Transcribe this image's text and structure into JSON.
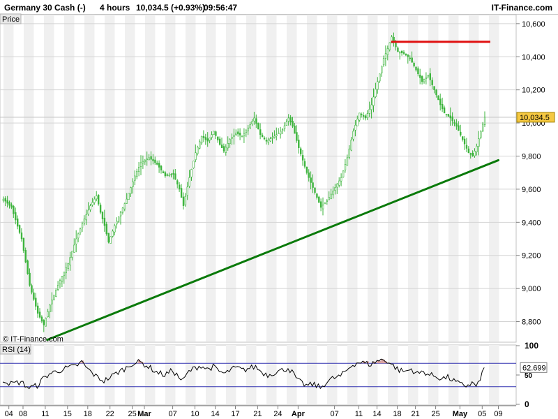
{
  "header": {
    "instrument": "Germany 30 Cash (-)",
    "timeframe": "4 hours",
    "quote": "10,034.5 (+0.93%)",
    "time": "09:56:47",
    "brand": "IT-Finance.com"
  },
  "price_panel": {
    "label": "Price",
    "watermark": "© IT-Finance.com",
    "last_price_label": "10,034.5"
  },
  "rsi_panel": {
    "label": "RSI (14)",
    "last_value_label": "62.699"
  },
  "colors": {
    "candle": "#3cb43c",
    "support_line": "#0a7a0a",
    "resistance_line": "#e01010",
    "rsi_bands": "#3030b0",
    "rsi_fill": "#d8a0a0",
    "last_price_bg": "#f5c842"
  },
  "chart_data": [
    {
      "type": "candlestick",
      "x_tick_labels": [
        "04",
        "08",
        "11",
        "15",
        "18",
        "22",
        "25",
        "Mar",
        "07",
        "10",
        "14",
        "17",
        "21",
        "24",
        "Apr",
        "07",
        "11",
        "14",
        "18",
        "21",
        "25",
        "May",
        "05",
        "09"
      ],
      "y_ticks": [
        8800,
        9000,
        9200,
        9400,
        9600,
        9800,
        10000,
        10200,
        10400,
        10600
      ],
      "y_tick_labels": [
        "8,800",
        "9,000",
        "9,200",
        "9,400",
        "9,600",
        "9,800",
        "10,000",
        "10,200",
        "10,400",
        "10,600"
      ],
      "ylim": [
        8680,
        10650
      ],
      "last_price": 10034.5,
      "close_path": [
        [
          0,
          9540
        ],
        [
          4,
          9490
        ],
        [
          9,
          9300
        ],
        [
          13,
          9020
        ],
        [
          17,
          8850
        ],
        [
          20,
          8780
        ],
        [
          23,
          8900
        ],
        [
          28,
          9050
        ],
        [
          32,
          9150
        ],
        [
          36,
          9300
        ],
        [
          40,
          9420
        ],
        [
          43,
          9500
        ],
        [
          46,
          9560
        ],
        [
          48,
          9460
        ],
        [
          50,
          9380
        ],
        [
          52,
          9280
        ],
        [
          55,
          9380
        ],
        [
          58,
          9460
        ],
        [
          61,
          9540
        ],
        [
          65,
          9680
        ],
        [
          68,
          9760
        ],
        [
          72,
          9790
        ],
        [
          76,
          9750
        ],
        [
          80,
          9680
        ],
        [
          84,
          9690
        ],
        [
          87,
          9600
        ],
        [
          89,
          9500
        ],
        [
          92,
          9670
        ],
        [
          95,
          9820
        ],
        [
          98,
          9920
        ],
        [
          101,
          9890
        ],
        [
          104,
          9950
        ],
        [
          107,
          9870
        ],
        [
          109,
          9830
        ],
        [
          112,
          9900
        ],
        [
          115,
          9940
        ],
        [
          118,
          9920
        ],
        [
          121,
          9970
        ],
        [
          124,
          10030
        ],
        [
          127,
          9930
        ],
        [
          130,
          9890
        ],
        [
          134,
          9920
        ],
        [
          138,
          9960
        ],
        [
          141,
          10030
        ],
        [
          143,
          9980
        ],
        [
          146,
          9850
        ],
        [
          150,
          9700
        ],
        [
          154,
          9580
        ],
        [
          157,
          9490
        ],
        [
          160,
          9530
        ],
        [
          163,
          9590
        ],
        [
          167,
          9670
        ],
        [
          170,
          9790
        ],
        [
          173,
          9950
        ],
        [
          176,
          10060
        ],
        [
          179,
          10030
        ],
        [
          182,
          10110
        ],
        [
          185,
          10250
        ],
        [
          188,
          10390
        ],
        [
          190,
          10450
        ],
        [
          192,
          10520
        ],
        [
          195,
          10430
        ],
        [
          198,
          10420
        ],
        [
          201,
          10390
        ],
        [
          204,
          10320
        ],
        [
          207,
          10250
        ],
        [
          210,
          10290
        ],
        [
          213,
          10200
        ],
        [
          216,
          10110
        ],
        [
          218,
          10060
        ],
        [
          221,
          10030
        ],
        [
          224,
          9980
        ],
        [
          227,
          9900
        ],
        [
          230,
          9820
        ],
        [
          232,
          9800
        ],
        [
          234,
          9860
        ],
        [
          236,
          9950
        ],
        [
          238,
          10034.5
        ]
      ],
      "annotations": {
        "support_line": {
          "from": [
            22,
            8690
          ],
          "to": [
            245,
            9775
          ]
        },
        "resistance_line": {
          "from": [
            192,
            10490
          ],
          "to": [
            241,
            10490
          ],
          "value": 10490
        }
      }
    },
    {
      "type": "line",
      "name": "RSI (14)",
      "y_ticks": [
        0,
        50,
        100
      ],
      "y_tick_labels": [
        "0",
        "50",
        "100"
      ],
      "ylim": [
        0,
        100
      ],
      "bands": [
        30,
        70
      ],
      "last_value": 62.699,
      "path": [
        [
          0,
          42
        ],
        [
          4,
          35
        ],
        [
          9,
          38
        ],
        [
          13,
          28
        ],
        [
          17,
          32
        ],
        [
          20,
          44
        ],
        [
          23,
          52
        ],
        [
          28,
          58
        ],
        [
          32,
          62
        ],
        [
          36,
          65
        ],
        [
          39,
          72
        ],
        [
          42,
          60
        ],
        [
          46,
          48
        ],
        [
          50,
          40
        ],
        [
          53,
          46
        ],
        [
          57,
          55
        ],
        [
          61,
          62
        ],
        [
          64,
          70
        ],
        [
          68,
          72
        ],
        [
          72,
          64
        ],
        [
          76,
          55
        ],
        [
          80,
          50
        ],
        [
          84,
          58
        ],
        [
          87,
          46
        ],
        [
          89,
          40
        ],
        [
          92,
          56
        ],
        [
          95,
          62
        ],
        [
          98,
          66
        ],
        [
          101,
          60
        ],
        [
          104,
          64
        ],
        [
          107,
          56
        ],
        [
          110,
          52
        ],
        [
          113,
          60
        ],
        [
          116,
          62
        ],
        [
          119,
          58
        ],
        [
          122,
          62
        ],
        [
          125,
          64
        ],
        [
          128,
          55
        ],
        [
          131,
          50
        ],
        [
          134,
          54
        ],
        [
          138,
          58
        ],
        [
          141,
          62
        ],
        [
          143,
          55
        ],
        [
          146,
          40
        ],
        [
          150,
          32
        ],
        [
          154,
          34
        ],
        [
          157,
          28
        ],
        [
          160,
          38
        ],
        [
          163,
          44
        ],
        [
          167,
          48
        ],
        [
          170,
          58
        ],
        [
          173,
          68
        ],
        [
          176,
          72
        ],
        [
          179,
          70
        ],
        [
          182,
          68
        ],
        [
          185,
          74
        ],
        [
          188,
          76
        ],
        [
          190,
          74
        ],
        [
          193,
          66
        ],
        [
          196,
          58
        ],
        [
          199,
          56
        ],
        [
          202,
          60
        ],
        [
          205,
          52
        ],
        [
          208,
          56
        ],
        [
          211,
          50
        ],
        [
          214,
          48
        ],
        [
          217,
          44
        ],
        [
          220,
          46
        ],
        [
          223,
          40
        ],
        [
          226,
          34
        ],
        [
          229,
          32
        ],
        [
          232,
          36
        ],
        [
          234,
          32
        ],
        [
          236,
          40
        ],
        [
          238,
          62.7
        ]
      ]
    }
  ]
}
